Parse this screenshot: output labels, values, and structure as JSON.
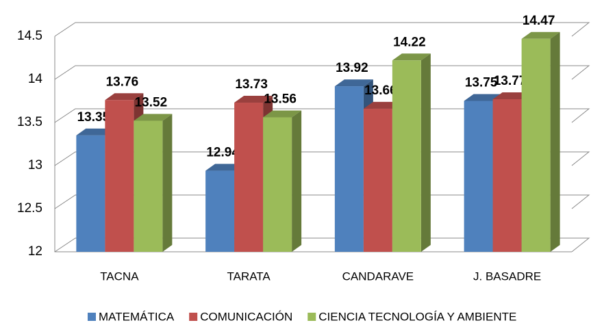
{
  "chart_data": {
    "type": "bar3d",
    "categories": [
      "TACNA",
      "TARATA",
      "CANDARAVE",
      "J. BASADRE"
    ],
    "series": [
      {
        "name": "MATEMÁTICA",
        "color": "#4f81bd",
        "values": [
          13.35,
          12.94,
          13.92,
          13.75
        ]
      },
      {
        "name": "COMUNICACIÓN",
        "color": "#c0504d",
        "values": [
          13.76,
          13.73,
          13.66,
          13.77
        ]
      },
      {
        "name": "CIENCIA TECNOLOGÍA Y AMBIENTE",
        "color": "#9bbb59",
        "values": [
          13.52,
          13.56,
          14.22,
          14.47
        ]
      }
    ],
    "ylim": [
      12,
      14.5
    ],
    "yticks": [
      12,
      12.5,
      13,
      13.5,
      14,
      14.5
    ],
    "grid": true,
    "legend": "bottom"
  }
}
